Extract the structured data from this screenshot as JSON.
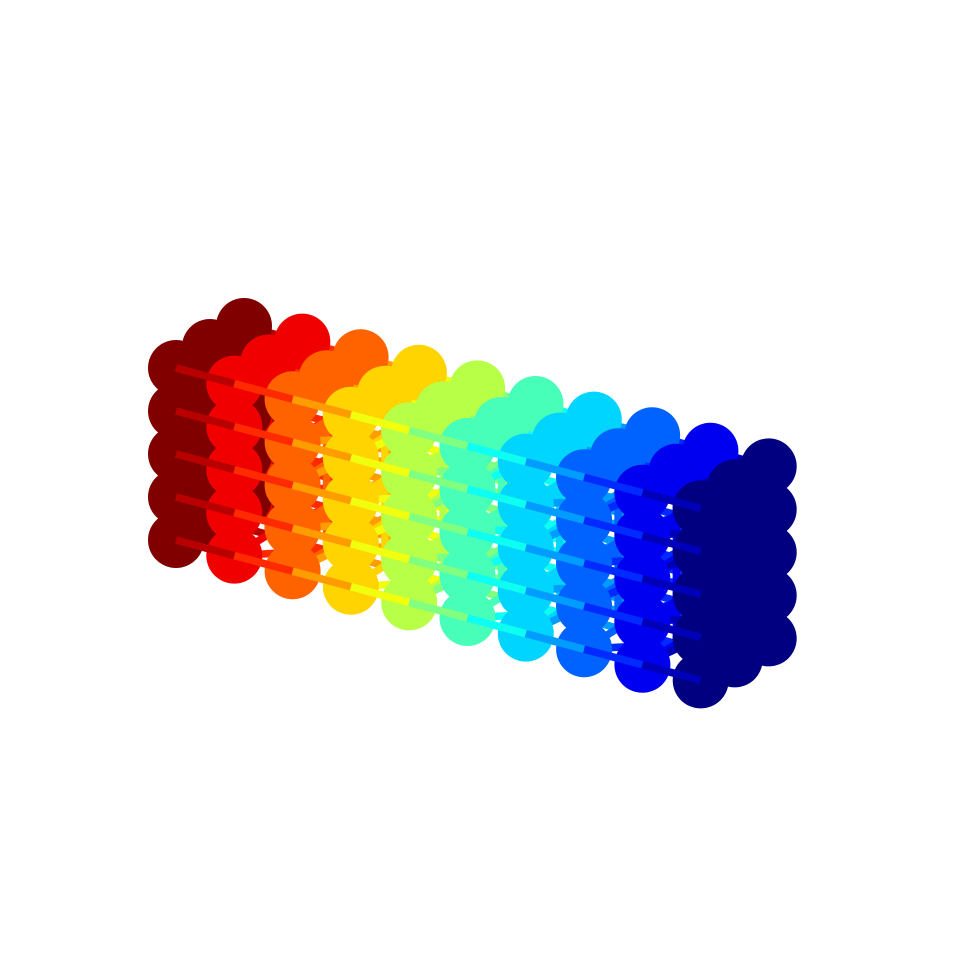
{
  "figure": {
    "background": "#ffffff",
    "lattice": {
      "nx": 10,
      "ny": 3,
      "nz": 5,
      "colormap": "jet",
      "color_by": "x-index",
      "bonds": [
        "nearest-neighbor",
        "face-diagonal"
      ]
    }
  }
}
